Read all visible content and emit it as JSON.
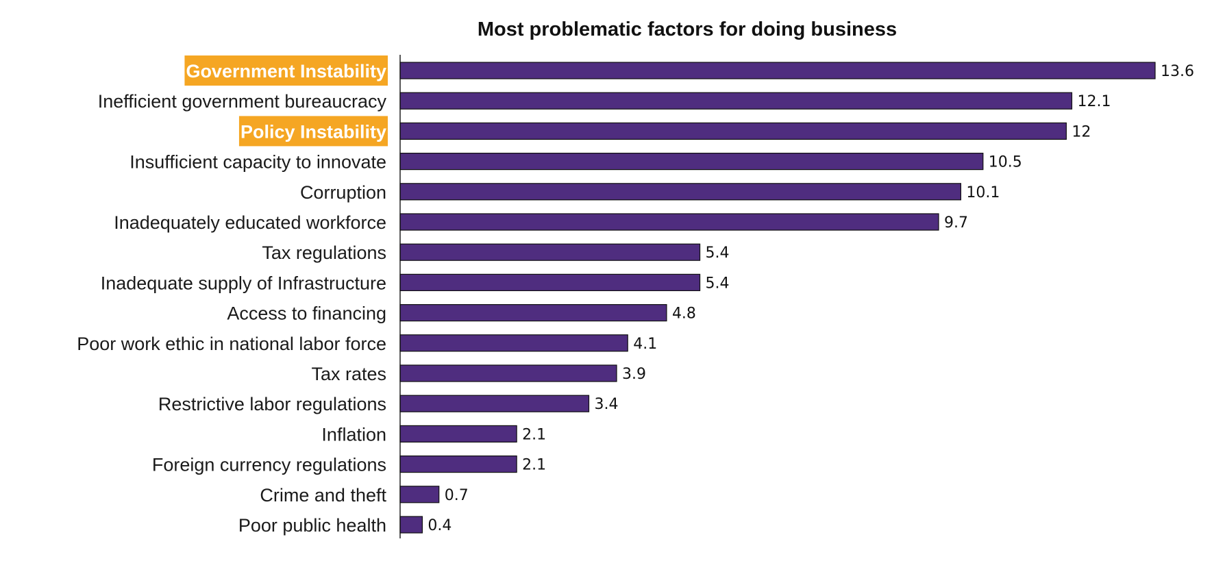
{
  "chart_data": {
    "type": "bar",
    "orientation": "horizontal",
    "title": "Most problematic factors for doing business",
    "xlabel": "",
    "ylabel": "",
    "xlim": [
      0,
      13.6
    ],
    "grid": false,
    "legend": "none",
    "categories": [
      "Government Instability",
      "Inefficient government bureaucracy",
      "Policy Instability",
      "Insufficient capacity to innovate",
      "Corruption",
      "Inadequately educated workforce",
      "Tax regulations",
      "Inadequate supply of Infrastructure",
      "Access to financing",
      "Poor work ethic in national labor force",
      "Tax rates",
      "Restrictive labor regulations",
      "Inflation",
      "Foreign currency regulations",
      "Crime and theft",
      "Poor public health"
    ],
    "values": [
      13.6,
      12.1,
      12,
      10.5,
      10.1,
      9.7,
      5.4,
      5.4,
      4.8,
      4.1,
      3.9,
      3.4,
      2.1,
      2.1,
      0.7,
      0.4
    ],
    "highlighted_categories": [
      "Government Instability",
      "Policy Instability"
    ]
  },
  "colors": {
    "bar": "#4f2d7f",
    "highlight": "#f5a623",
    "axis": "#111111"
  }
}
